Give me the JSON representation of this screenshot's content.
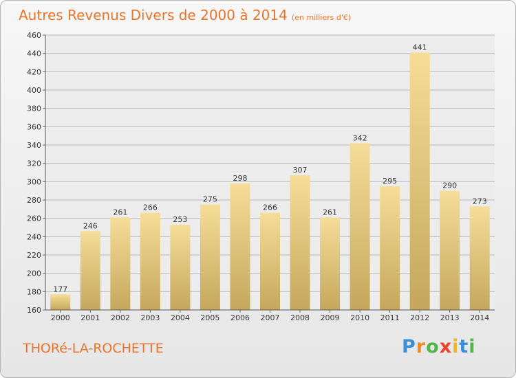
{
  "title": "Autres Revenus Divers de 2000 à 2014",
  "subtitle": "(en milliers d'€)",
  "city": "THORé-LA-ROCHETTE",
  "logo": {
    "letters": [
      "P",
      "r",
      "o",
      "x",
      "i",
      "t",
      "i"
    ],
    "colors": [
      "#3a8fd6",
      "#f28a1e",
      "#4db848",
      "#e8412c",
      "#f2b617",
      "#3a8fd6",
      "#4db848"
    ]
  },
  "colors": {
    "title": "#e8752a",
    "bar_light": "#f5dd98",
    "bar_dark": "#c4a75c",
    "grid": "#b9b9b9"
  },
  "chart_data": {
    "type": "bar",
    "categories": [
      "2000",
      "2001",
      "2002",
      "2003",
      "2004",
      "2005",
      "2006",
      "2007",
      "2008",
      "2009",
      "2010",
      "2011",
      "2012",
      "2013",
      "2014"
    ],
    "values": [
      177,
      246,
      261,
      266,
      253,
      275,
      298,
      266,
      307,
      261,
      342,
      295,
      441,
      290,
      273
    ],
    "ylim": [
      160,
      460
    ],
    "yticks": [
      160,
      180,
      200,
      220,
      240,
      260,
      280,
      300,
      320,
      340,
      360,
      380,
      400,
      420,
      440,
      460
    ],
    "grid": true
  }
}
